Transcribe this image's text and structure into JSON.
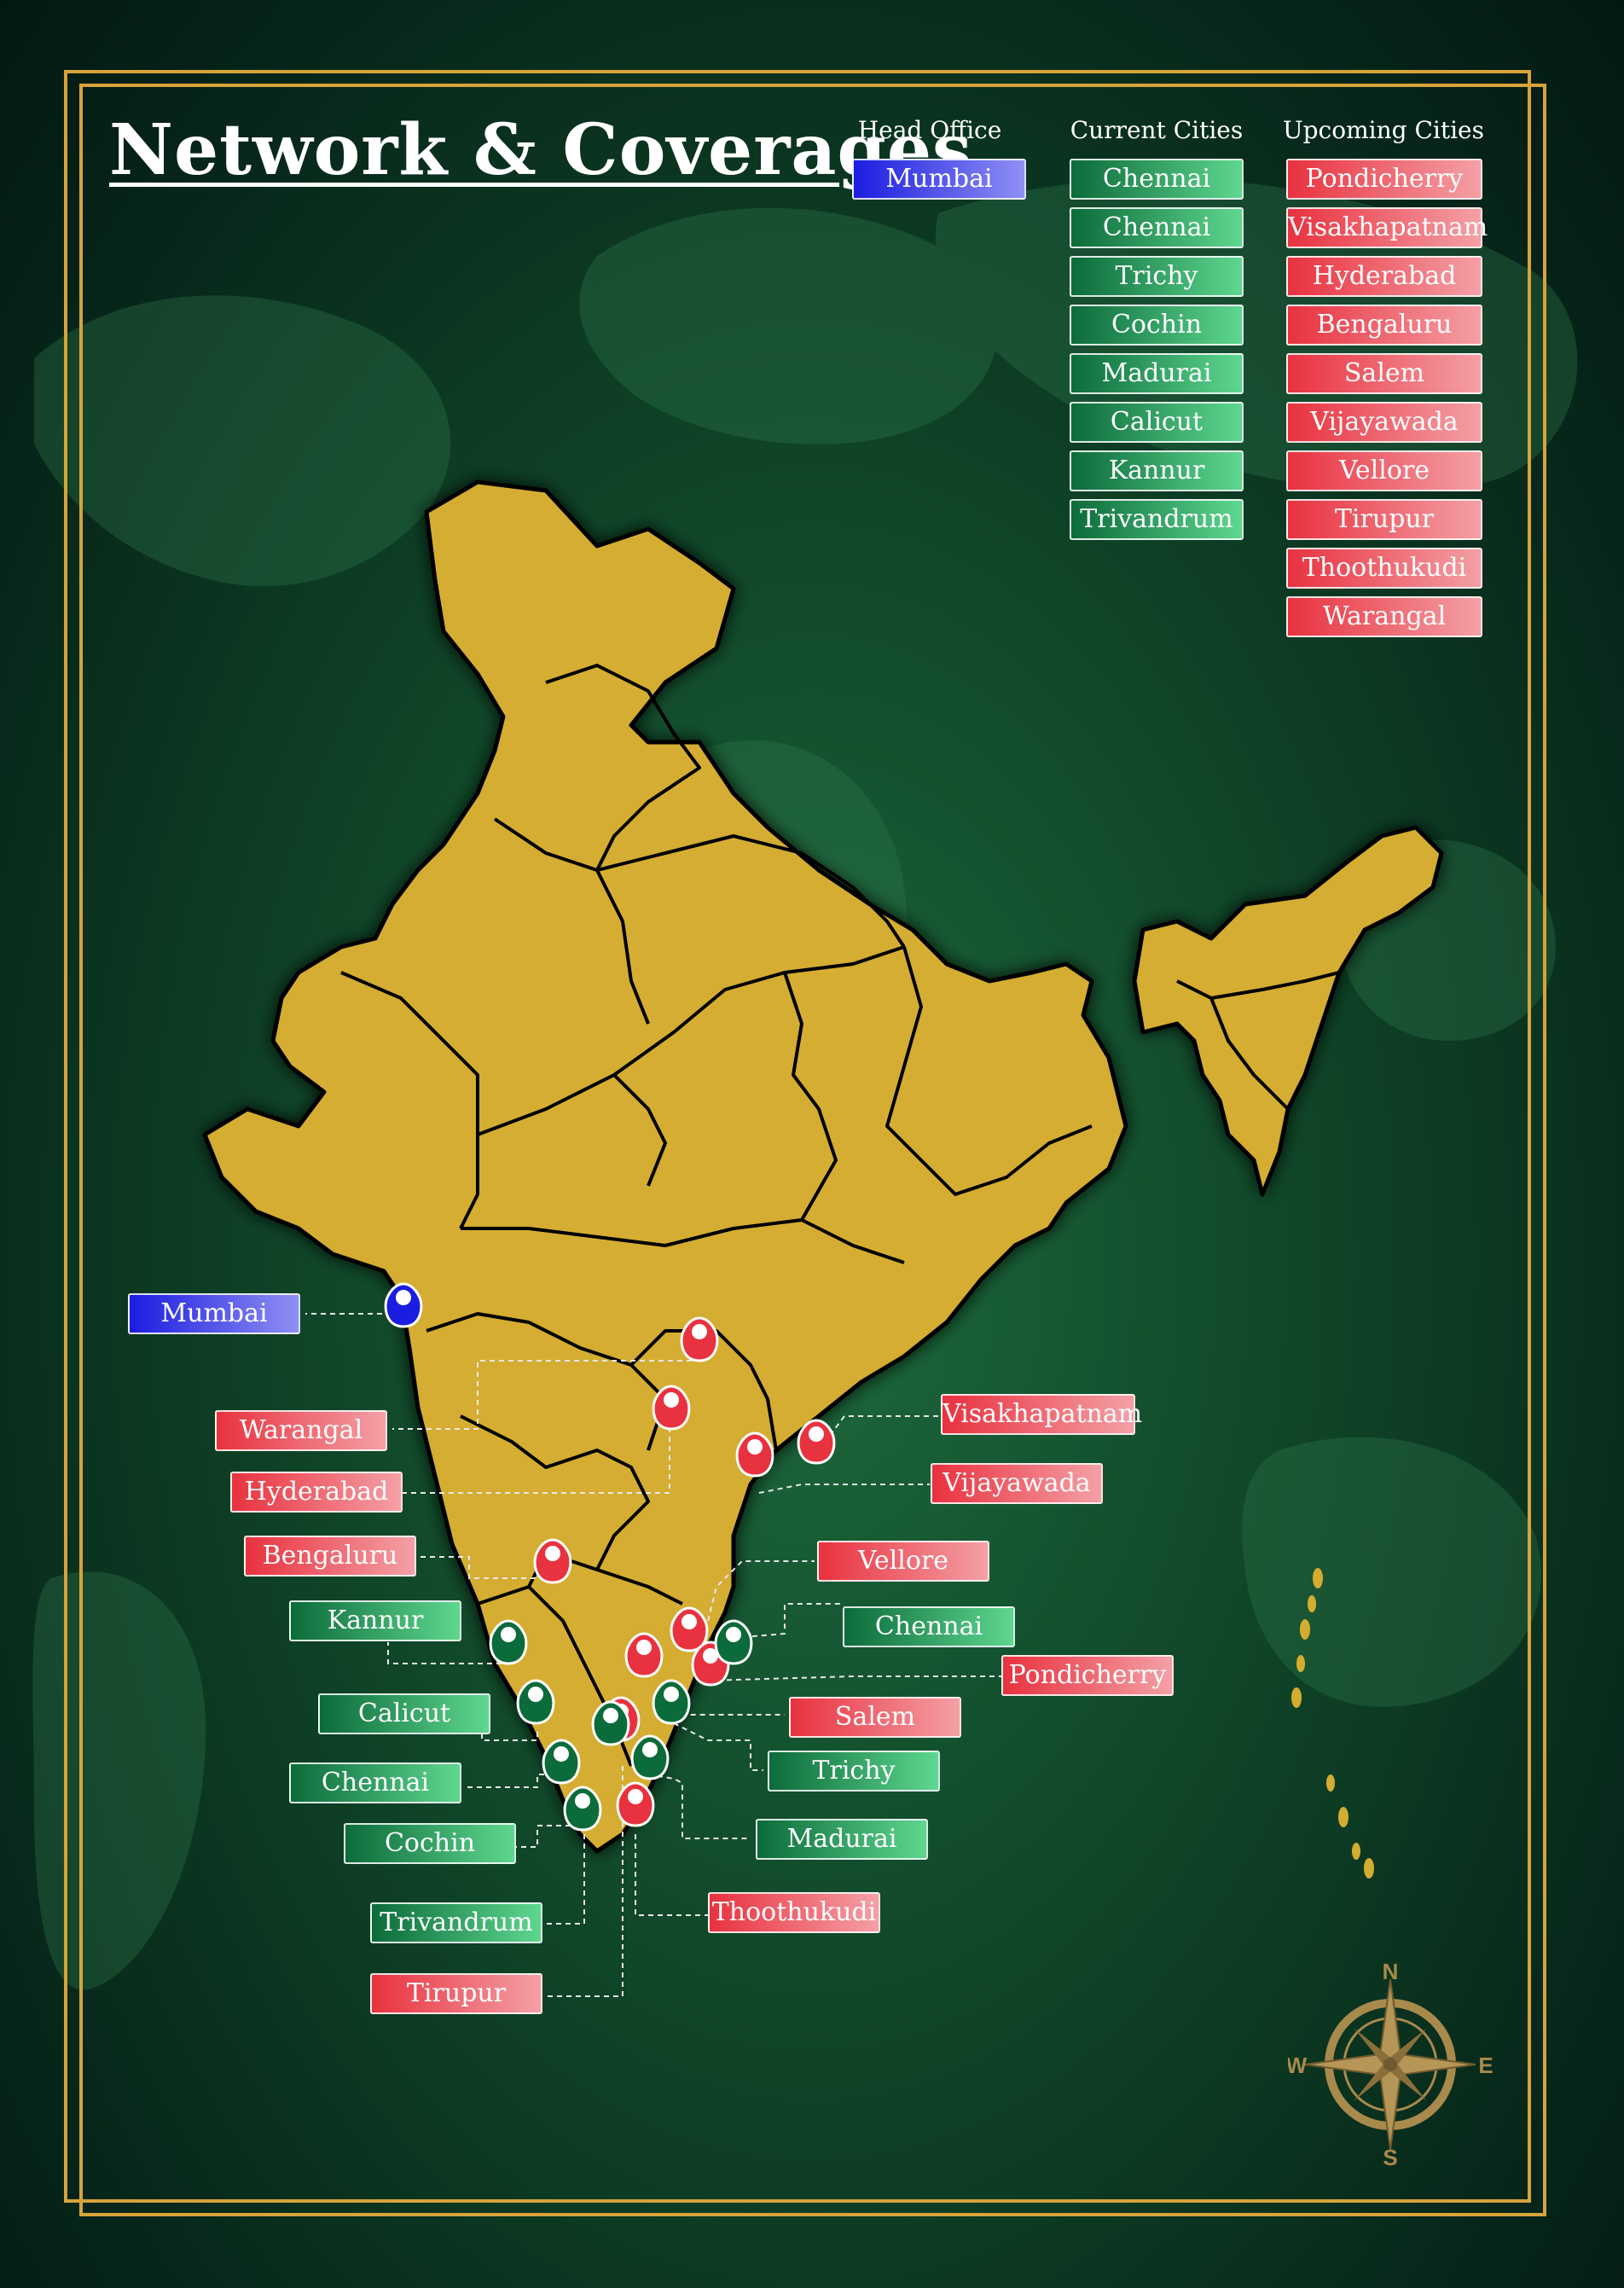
{
  "title": "Network & Coverages",
  "legend": {
    "head_office_title": "Head Office",
    "current_title": "Current Cities",
    "upcoming_title": "Upcoming Cities",
    "head_office": [
      "Mumbai"
    ],
    "current": [
      "Chennai",
      "Chennai",
      "Trichy",
      "Cochin",
      "Madurai",
      "Calicut",
      "Kannur",
      "Trivandrum"
    ],
    "upcoming": [
      "Pondicherry",
      "Visakhapatnam",
      "Hyderabad",
      "Bengaluru",
      "Salem",
      "Vijayawada",
      "Vellore",
      "Tirupur",
      "Thoothukudi",
      "Warangal"
    ]
  },
  "map_labels": [
    {
      "text": "Mumbai",
      "status": "head"
    },
    {
      "text": "Warangal",
      "status": "upcoming"
    },
    {
      "text": "Hyderabad",
      "status": "upcoming"
    },
    {
      "text": "Bengaluru",
      "status": "upcoming"
    },
    {
      "text": "Kannur",
      "status": "current"
    },
    {
      "text": "Calicut",
      "status": "current"
    },
    {
      "text": "Chennai",
      "status": "current"
    },
    {
      "text": "Cochin",
      "status": "current"
    },
    {
      "text": "Trivandrum",
      "status": "current"
    },
    {
      "text": "Tirupur",
      "status": "upcoming"
    },
    {
      "text": "Visakhapatnam",
      "status": "upcoming"
    },
    {
      "text": "Vijayawada",
      "status": "upcoming"
    },
    {
      "text": "Vellore",
      "status": "upcoming"
    },
    {
      "text": "Chennai",
      "status": "current"
    },
    {
      "text": "Pondicherry",
      "status": "upcoming"
    },
    {
      "text": "Salem",
      "status": "upcoming"
    },
    {
      "text": "Trichy",
      "status": "current"
    },
    {
      "text": "Madurai",
      "status": "current"
    },
    {
      "text": "Thoothukudi",
      "status": "upcoming"
    }
  ],
  "compass": {
    "n": "N",
    "s": "S",
    "e": "E",
    "w": "W"
  },
  "colors": {
    "land": "#d4ad30",
    "current": "#0c6b3a",
    "upcoming": "#e8323f",
    "head": "#1b1de0",
    "frame": "#d7a33a"
  }
}
